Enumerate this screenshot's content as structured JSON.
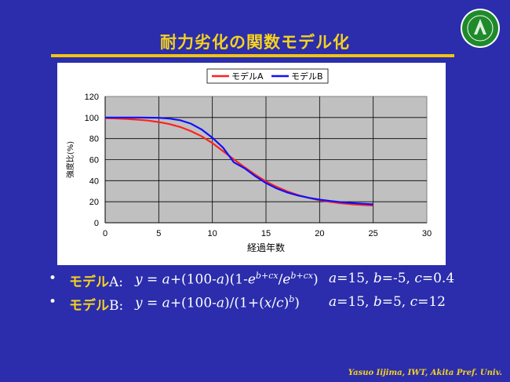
{
  "page": {
    "title": "耐力劣化の関数モデル化",
    "footer": "Yasuo Iijima, IWT, Akita Pref.  Univ."
  },
  "chart_data": {
    "type": "line",
    "xlabel": "経過年数",
    "ylabel": "強度比(%)",
    "xlim": [
      0,
      30
    ],
    "ylim": [
      0,
      120
    ],
    "xticks": [
      0,
      5,
      10,
      15,
      20,
      25,
      30
    ],
    "yticks": [
      0,
      20,
      40,
      60,
      80,
      100,
      120
    ],
    "grid": true,
    "legend_position": "top",
    "series": [
      {
        "name": "モデルA",
        "color": "#ff2020",
        "x": [
          0,
          1,
          2,
          3,
          4,
          5,
          6,
          7,
          8,
          9,
          10,
          11,
          12,
          13,
          14,
          15,
          16,
          17,
          18,
          19,
          20,
          21,
          22,
          23,
          24,
          25
        ],
        "y": [
          99.4,
          99.1,
          98.7,
          98.0,
          97.1,
          95.7,
          93.8,
          91.0,
          87.1,
          82.1,
          75.7,
          68.0,
          60.3,
          52.8,
          45.7,
          39.3,
          34.1,
          29.8,
          26.3,
          23.6,
          21.4,
          19.8,
          18.5,
          17.6,
          16.9,
          16.4
        ]
      },
      {
        "name": "モデルB",
        "color": "#1010ff",
        "x": [
          0,
          1,
          2,
          3,
          4,
          5,
          6,
          7,
          8,
          9,
          10,
          11,
          12,
          13,
          14,
          15,
          16,
          17,
          18,
          19,
          20,
          21,
          22,
          23,
          24,
          25
        ],
        "y": [
          100,
          100,
          100,
          100,
          99.9,
          99.7,
          99.0,
          97.4,
          94.2,
          88.6,
          80.8,
          71.4,
          57.5,
          51.8,
          44.3,
          37.7,
          32.6,
          28.8,
          25.9,
          23.7,
          22.0,
          20.7,
          19.6,
          18.8,
          18.1,
          17.5
        ]
      }
    ]
  },
  "bullets": [
    {
      "dot": "•",
      "name": "モデル",
      "letter": "A",
      "colon": ":",
      "formula": "y = a+(100-a)(1-e^(b+cx)/e^(b+cx))",
      "params": "a=15, b=-5, c=0.4"
    },
    {
      "dot": "•",
      "name": "モデル",
      "letter": "B",
      "colon": ":",
      "formula": "y = a+(100-a)/(1+(x/c)^b)",
      "params": "a=15, b=5, c=12"
    }
  ],
  "logo": {
    "icon": "university-seal",
    "text": "Akita Prefectural University"
  }
}
